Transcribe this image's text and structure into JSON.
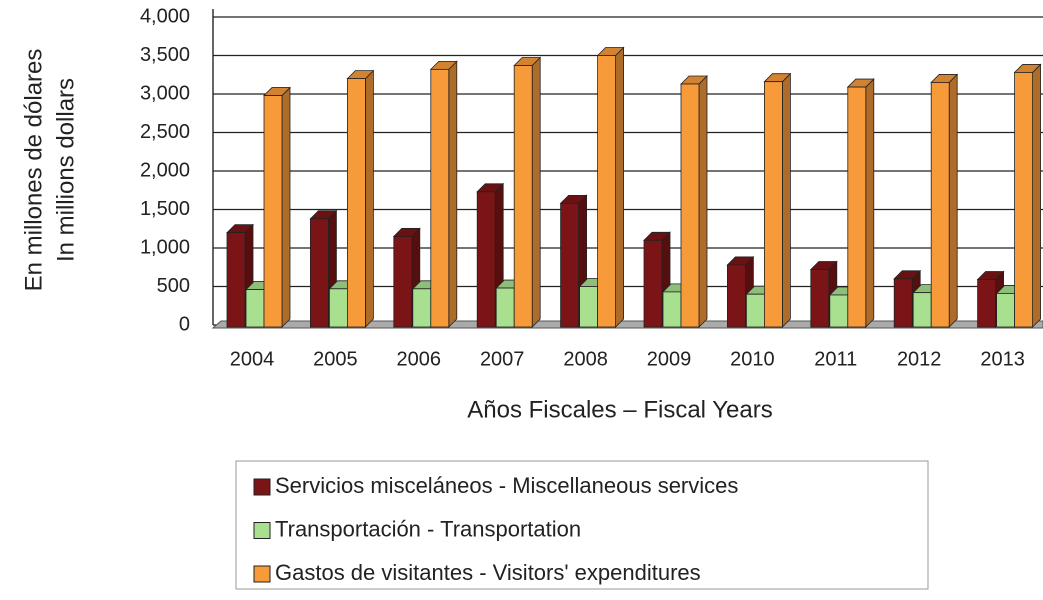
{
  "chart_data": {
    "type": "bar3d",
    "x_label": "Años Fiscales – Fiscal Years",
    "y_label": [
      "En millones de dólares",
      "In millions dollars"
    ],
    "categories": [
      "2004",
      "2005",
      "2006",
      "2007",
      "2008",
      "2009",
      "2010",
      "2011",
      "2012",
      "2013"
    ],
    "series": [
      {
        "name": "Servicios misceláneos - Miscellaneous services",
        "color": "#7b1416",
        "values": [
          1200,
          1380,
          1150,
          1730,
          1580,
          1100,
          780,
          720,
          600,
          590
        ]
      },
      {
        "name": "Transportación - Transportation",
        "color": "#a8e08f",
        "values": [
          460,
          470,
          470,
          480,
          500,
          430,
          400,
          390,
          420,
          410
        ]
      },
      {
        "name": "Gastos de visitantes - Visitors' expenditures",
        "color": "#f79a3a",
        "values": [
          2980,
          3200,
          3320,
          3370,
          3500,
          3130,
          3160,
          3090,
          3150,
          3280
        ]
      }
    ],
    "ylim": [
      0,
      4000
    ],
    "yticks": [
      0,
      500,
      {
        "value": 1000,
        "label": "1,000"
      },
      {
        "value": 1500,
        "label": "1,500"
      },
      {
        "value": 2000,
        "label": "2,000"
      },
      {
        "value": 2500,
        "label": "2,500"
      },
      {
        "value": 3000,
        "label": "3,000"
      },
      {
        "value": 3500,
        "label": "3,500"
      },
      {
        "value": 4000,
        "label": "4,000"
      }
    ],
    "grid": true,
    "legend": "bottom"
  }
}
